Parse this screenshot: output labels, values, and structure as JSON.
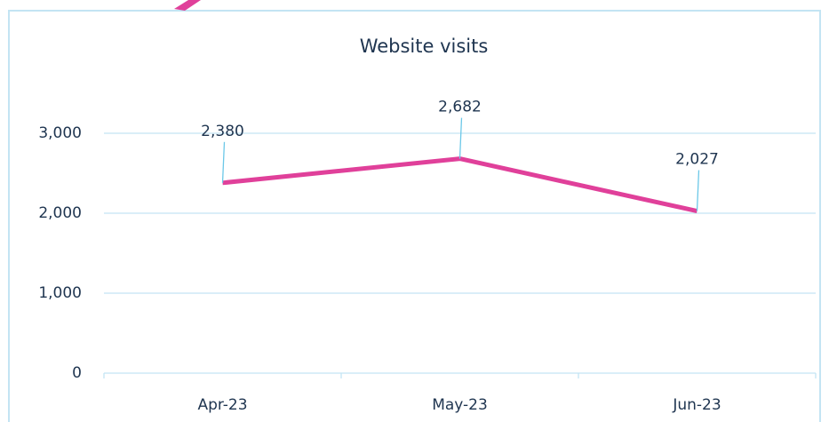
{
  "chart_data": {
    "type": "line",
    "title": "Website visits",
    "categories": [
      "Apr-23",
      "May-23",
      "Jun-23"
    ],
    "series": [
      {
        "name": "Website visits",
        "color": "#e0409a",
        "values": [
          2380,
          2682,
          2027
        ],
        "value_labels": [
          "2,380",
          "2,682",
          "2,027"
        ]
      }
    ],
    "ylim": [
      0,
      3000
    ],
    "yticks": [
      0,
      {
        "value": 1000,
        "label": "1,000"
      },
      {
        "value": 2000,
        "label": "2,000"
      },
      {
        "value": 3000,
        "label": "3,000"
      }
    ],
    "grid": true
  }
}
